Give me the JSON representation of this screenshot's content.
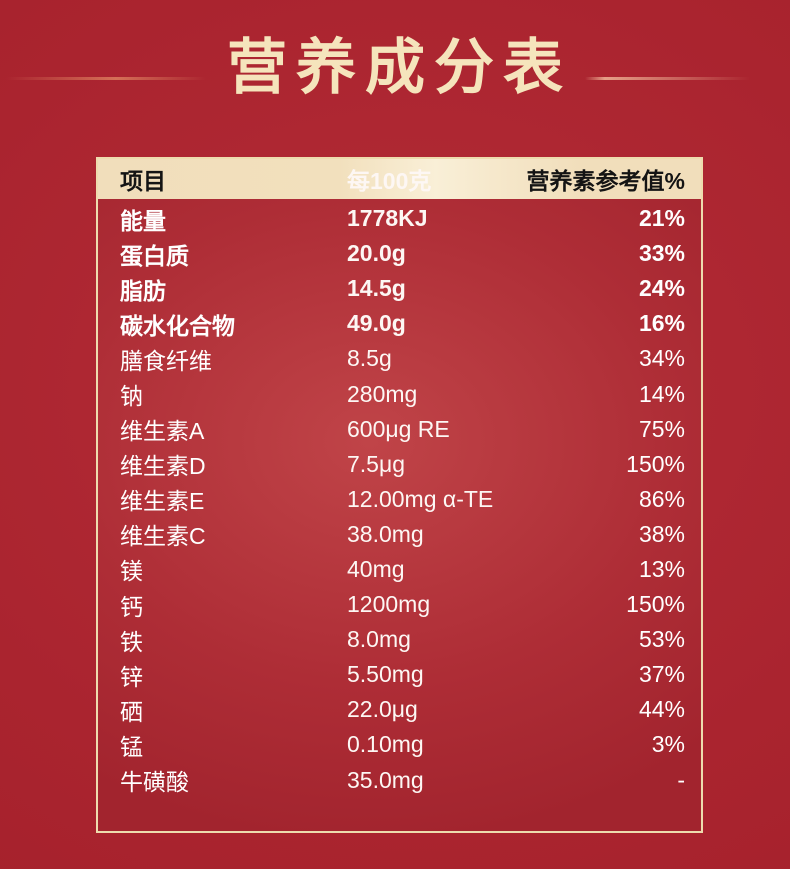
{
  "page": {
    "title": "营养成分表",
    "colors": {
      "background_red": "#aa242f",
      "title_text": "#f5e4bc",
      "accent_line": "#d77459",
      "table_border": "#eedcae",
      "header_bg": "#f2dfba",
      "header_text": "#141414",
      "table_body_red": "#ae2d36",
      "row_text": "#ffffff"
    }
  },
  "table": {
    "columns": {
      "item": "项目",
      "per_100g": "每100克",
      "nrv": "营养素参考值%"
    },
    "rows": [
      {
        "name": "能量",
        "value": "1778KJ",
        "nrv": "21%",
        "bold": true
      },
      {
        "name": "蛋白质",
        "value": "20.0g",
        "nrv": "33%",
        "bold": true
      },
      {
        "name": "脂肪",
        "value": "14.5g",
        "nrv": "24%",
        "bold": true
      },
      {
        "name": "碳水化合物",
        "value": "49.0g",
        "nrv": "16%",
        "bold": true
      },
      {
        "name": "膳食纤维",
        "value": "8.5g",
        "nrv": "34%",
        "bold": false
      },
      {
        "name": "钠",
        "value": "280mg",
        "nrv": "14%",
        "bold": false
      },
      {
        "name": "维生素A",
        "value": "600μg RE",
        "nrv": "75%",
        "bold": false
      },
      {
        "name": "维生素D",
        "value": "7.5μg",
        "nrv": "150%",
        "bold": false
      },
      {
        "name": "维生素E",
        "value": "12.00mg α-TE",
        "nrv": "86%",
        "bold": false
      },
      {
        "name": "维生素C",
        "value": "38.0mg",
        "nrv": "38%",
        "bold": false
      },
      {
        "name": "镁",
        "value": "40mg",
        "nrv": "13%",
        "bold": false
      },
      {
        "name": "钙",
        "value": "1200mg",
        "nrv": "150%",
        "bold": false
      },
      {
        "name": "铁",
        "value": "8.0mg",
        "nrv": "53%",
        "bold": false
      },
      {
        "name": "锌",
        "value": "5.50mg",
        "nrv": "37%",
        "bold": false
      },
      {
        "name": "硒",
        "value": "22.0μg",
        "nrv": "44%",
        "bold": false
      },
      {
        "name": "锰",
        "value": "0.10mg",
        "nrv": "3%",
        "bold": false
      },
      {
        "name": "牛磺酸",
        "value": "35.0mg",
        "nrv": "-",
        "bold": false
      }
    ]
  },
  "chart_data": {
    "type": "table",
    "title": "营养成分表",
    "columns": [
      "项目",
      "每100克",
      "营养素参考值%"
    ],
    "rows": [
      [
        "能量",
        "1778KJ",
        "21%"
      ],
      [
        "蛋白质",
        "20.0g",
        "33%"
      ],
      [
        "脂肪",
        "14.5g",
        "24%"
      ],
      [
        "碳水化合物",
        "49.0g",
        "16%"
      ],
      [
        "膳食纤维",
        "8.5g",
        "34%"
      ],
      [
        "钠",
        "280mg",
        "14%"
      ],
      [
        "维生素A",
        "600μg RE",
        "75%"
      ],
      [
        "维生素D",
        "7.5μg",
        "150%"
      ],
      [
        "维生素E",
        "12.00mg α-TE",
        "86%"
      ],
      [
        "维生素C",
        "38.0mg",
        "38%"
      ],
      [
        "镁",
        "40mg",
        "13%"
      ],
      [
        "钙",
        "1200mg",
        "150%"
      ],
      [
        "铁",
        "8.0mg",
        "53%"
      ],
      [
        "锌",
        "5.50mg",
        "37%"
      ],
      [
        "硒",
        "22.0μg",
        "44%"
      ],
      [
        "锰",
        "0.10mg",
        "3%"
      ],
      [
        "牛磺酸",
        "35.0mg",
        "-"
      ]
    ]
  }
}
